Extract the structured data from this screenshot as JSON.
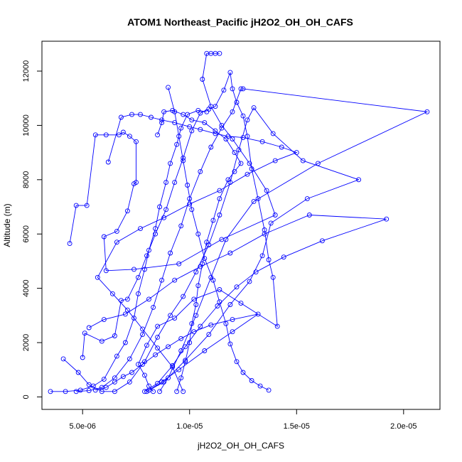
{
  "chart_data": {
    "type": "line",
    "title": "ATOM1 Northeast_Pacific jH2O2_OH_OH_CAFS",
    "xlabel": "jH2O2_OH_OH_CAFS",
    "ylabel": "Altitude (m)",
    "xlim": [
      3.1e-06,
      2.17e-05
    ],
    "ylim": [
      -460,
      13100
    ],
    "xticks": [
      5e-06,
      1e-05,
      1.5e-05,
      2e-05
    ],
    "xtick_labels": [
      "5.0e-06",
      "1.0e-05",
      "1.5e-05",
      "2.0e-05"
    ],
    "yticks": [
      0,
      2000,
      4000,
      6000,
      8000,
      10000,
      12000
    ],
    "ytick_labels": [
      "0",
      "2000",
      "4000",
      "6000",
      "8000",
      "10000",
      "12000"
    ],
    "series_color": "#0000ff",
    "marker": "open-circle",
    "series": [
      {
        "values": [
          [
            3.5e-06,
            200
          ],
          [
            4.2e-06,
            200
          ],
          [
            4.9e-06,
            250
          ],
          [
            5.5e-06,
            400
          ],
          [
            6e-06,
            650
          ],
          [
            6.6e-06,
            1500
          ],
          [
            7e-06,
            2000
          ],
          [
            7.4e-06,
            2900
          ],
          [
            7.6e-06,
            3800
          ],
          [
            7.9e-06,
            4700
          ],
          [
            8.1e-06,
            5400
          ],
          [
            8.4e-06,
            6200
          ],
          [
            8.6e-06,
            7000
          ],
          [
            8.9e-06,
            7900
          ],
          [
            9.1e-06,
            8600
          ],
          [
            9.4e-06,
            9300
          ],
          [
            9.6e-06,
            9900
          ],
          [
            9.9e-06,
            10400
          ],
          [
            1.04e-05,
            10550
          ],
          [
            1.08e-05,
            10500
          ]
        ]
      },
      {
        "values": [
          [
            4.7e-06,
            200
          ],
          [
            5.3e-06,
            230
          ],
          [
            5.9e-06,
            350
          ],
          [
            6.5e-06,
            700
          ],
          [
            7.2e-06,
            1400
          ],
          [
            7.8e-06,
            2300
          ],
          [
            8.3e-06,
            3300
          ],
          [
            8.7e-06,
            4300
          ],
          [
            9.1e-06,
            5300
          ],
          [
            9.6e-06,
            6300
          ],
          [
            1e-05,
            7300
          ],
          [
            1.05e-05,
            8300
          ],
          [
            1.1e-05,
            9200
          ],
          [
            1.15e-05,
            9900
          ],
          [
            1.2e-05,
            10500
          ],
          [
            1.24e-05,
            11350
          ],
          [
            1.25e-05,
            11350
          ],
          [
            2.11e-05,
            10500
          ],
          [
            1.6e-05,
            8600
          ],
          [
            1.3e-05,
            7200
          ],
          [
            1.17e-05,
            5800
          ],
          [
            1.1e-05,
            4400
          ],
          [
            1.03e-05,
            3000
          ],
          [
            9.6e-06,
            1700
          ],
          [
            9e-06,
            700
          ],
          [
            8.6e-06,
            200
          ]
        ]
      },
      {
        "values": [
          [
            4.4e-06,
            5650
          ],
          [
            4.7e-06,
            7050
          ],
          [
            5.2e-06,
            7050
          ],
          [
            5.6e-06,
            9650
          ],
          [
            6.1e-06,
            9650
          ],
          [
            6.7e-06,
            9650
          ],
          [
            6.9e-06,
            9750
          ],
          [
            7.2e-06,
            9600
          ],
          [
            7.5e-06,
            9400
          ],
          [
            7.5e-06,
            7900
          ],
          [
            7.4e-06,
            7850
          ],
          [
            7.1e-06,
            6850
          ],
          [
            6.6e-06,
            6100
          ],
          [
            6e-06,
            5900
          ],
          [
            6.1e-06,
            4650
          ],
          [
            7.4e-06,
            4700
          ],
          [
            9.5e-06,
            4900
          ],
          [
            1.15e-05,
            5800
          ],
          [
            1.4e-05,
            6700
          ],
          [
            1.36e-05,
            7600
          ],
          [
            1.28e-05,
            8600
          ],
          [
            1.2e-05,
            9500
          ],
          [
            1.15e-05,
            10000
          ],
          [
            1.1e-05,
            10700
          ],
          [
            1.06e-05,
            11700
          ],
          [
            1.08e-05,
            12650
          ],
          [
            1.1e-05,
            12650
          ],
          [
            1.12e-05,
            12650
          ],
          [
            1.14e-05,
            12650
          ]
        ]
      },
      {
        "values": [
          [
            6.2e-06,
            8650
          ],
          [
            6.8e-06,
            10300
          ],
          [
            7.3e-06,
            10400
          ],
          [
            7.7e-06,
            10400
          ],
          [
            8.2e-06,
            10300
          ],
          [
            8.7e-06,
            10200
          ],
          [
            9.3e-06,
            10100
          ],
          [
            1e-05,
            9950
          ],
          [
            1.05e-05,
            9850
          ],
          [
            1.12e-05,
            9700
          ],
          [
            1.18e-05,
            9600
          ],
          [
            1.25e-05,
            9550
          ],
          [
            1.34e-05,
            9400
          ],
          [
            1.43e-05,
            9200
          ],
          [
            1.5e-05,
            9000
          ],
          [
            1.4e-05,
            8700
          ],
          [
            1.27e-05,
            8200
          ],
          [
            1.14e-05,
            7600
          ],
          [
            1e-05,
            7100
          ],
          [
            8.8e-06,
            6600
          ],
          [
            7.7e-06,
            6200
          ],
          [
            6.6e-06,
            5700
          ],
          [
            5.7e-06,
            4400
          ],
          [
            6.4e-06,
            3800
          ],
          [
            7.1e-06,
            3200
          ],
          [
            7.8e-06,
            2500
          ],
          [
            8.5e-06,
            1800
          ],
          [
            9.2e-06,
            1100
          ],
          [
            9.7e-06,
            200
          ]
        ]
      },
      {
        "values": [
          [
            4.1e-06,
            1400
          ],
          [
            4.8e-06,
            900
          ],
          [
            5.3e-06,
            450
          ],
          [
            5.9e-06,
            200
          ],
          [
            6.5e-06,
            200
          ],
          [
            7.2e-06,
            550
          ],
          [
            7.9e-06,
            1300
          ],
          [
            8.5e-06,
            2200
          ],
          [
            9.1e-06,
            3000
          ],
          [
            9.7e-06,
            3700
          ],
          [
            1.03e-05,
            4600
          ],
          [
            1.09e-05,
            5600
          ],
          [
            1.14e-05,
            6700
          ],
          [
            1.19e-05,
            7900
          ],
          [
            1.23e-05,
            9100
          ],
          [
            1.27e-05,
            10200
          ],
          [
            1.3e-05,
            10650
          ],
          [
            1.39e-05,
            9700
          ],
          [
            1.53e-05,
            8700
          ],
          [
            1.79e-05,
            8000
          ],
          [
            1.55e-05,
            7300
          ],
          [
            1.38e-05,
            6400
          ],
          [
            1.34e-05,
            5200
          ],
          [
            1.28e-05,
            4250
          ],
          [
            1.19e-05,
            3400
          ],
          [
            1.09e-05,
            2300
          ],
          [
            9.8e-06,
            1350
          ],
          [
            8.8e-06,
            550
          ],
          [
            8e-06,
            200
          ]
        ]
      },
      {
        "values": [
          [
            5e-06,
            1450
          ],
          [
            5.1e-06,
            2350
          ],
          [
            5.9e-06,
            2050
          ],
          [
            6.5e-06,
            2250
          ],
          [
            6.8e-06,
            3550
          ],
          [
            7.1e-06,
            3600
          ],
          [
            7.6e-06,
            4400
          ],
          [
            8e-06,
            5200
          ],
          [
            8.4e-06,
            6000
          ],
          [
            8.9e-06,
            6900
          ],
          [
            9.3e-06,
            7900
          ],
          [
            9.7e-06,
            8800
          ],
          [
            1.01e-05,
            9800
          ],
          [
            1.05e-05,
            10450
          ],
          [
            1.09e-05,
            10600
          ],
          [
            1.12e-05,
            10700
          ],
          [
            1.16e-05,
            11300
          ],
          [
            1.19e-05,
            11950
          ],
          [
            1.2e-05,
            11350
          ],
          [
            1.22e-05,
            10850
          ],
          [
            1.25e-05,
            10350
          ],
          [
            1.27e-05,
            9600
          ],
          [
            1.29e-05,
            8400
          ],
          [
            1.32e-05,
            7300
          ],
          [
            1.35e-05,
            6150
          ],
          [
            1.37e-05,
            5050
          ],
          [
            1.39e-05,
            4400
          ],
          [
            1.41e-05,
            2600
          ],
          [
            1.24e-05,
            3450
          ],
          [
            1.14e-05,
            3950
          ],
          [
            1.02e-05,
            3600
          ],
          [
            9.3e-06,
            2900
          ],
          [
            8.5e-06,
            2600
          ],
          [
            8e-06,
            1900
          ],
          [
            7.6e-06,
            1200
          ],
          [
            7.9e-06,
            800
          ],
          [
            8.1e-06,
            400
          ],
          [
            8.3e-06,
            200
          ]
        ]
      },
      {
        "values": [
          [
            5.3e-06,
            2550
          ],
          [
            6e-06,
            2850
          ],
          [
            7e-06,
            3050
          ],
          [
            8.1e-06,
            3600
          ],
          [
            9.3e-06,
            4300
          ],
          [
            1.05e-05,
            4800
          ],
          [
            1.19e-05,
            5300
          ],
          [
            1.35e-05,
            6000
          ],
          [
            1.56e-05,
            6700
          ],
          [
            1.92e-05,
            6550
          ],
          [
            1.62e-05,
            5750
          ],
          [
            1.44e-05,
            5150
          ],
          [
            1.31e-05,
            4600
          ],
          [
            1.22e-05,
            4050
          ],
          [
            1.13e-05,
            3350
          ],
          [
            1.05e-05,
            2600
          ],
          [
            9.8e-06,
            1850
          ],
          [
            9.2e-06,
            1150
          ],
          [
            8.5e-06,
            500
          ],
          [
            7.9e-06,
            200
          ]
        ]
      },
      {
        "values": [
          [
            5.6e-06,
            250
          ],
          [
            6.1e-06,
            350
          ],
          [
            6.5e-06,
            550
          ],
          [
            6.9e-06,
            750
          ],
          [
            7.3e-06,
            900
          ],
          [
            7.8e-06,
            1200
          ],
          [
            8.4e-06,
            1550
          ],
          [
            9e-06,
            1850
          ],
          [
            9.6e-06,
            2150
          ],
          [
            1.02e-05,
            2400
          ],
          [
            1.1e-05,
            2650
          ],
          [
            1.2e-05,
            2850
          ],
          [
            1.32e-05,
            3050
          ],
          [
            1.2e-05,
            2400
          ],
          [
            1.07e-05,
            1700
          ],
          [
            9.5e-06,
            1000
          ],
          [
            8.7e-06,
            550
          ],
          [
            8.1e-06,
            250
          ]
        ]
      },
      {
        "values": [
          [
            8.5e-06,
            9650
          ],
          [
            8.7e-06,
            10100
          ],
          [
            8.8e-06,
            10500
          ],
          [
            9.2e-06,
            10550
          ],
          [
            9.7e-06,
            10400
          ],
          [
            1.01e-05,
            10200
          ],
          [
            1.07e-05,
            10100
          ],
          [
            1.12e-05,
            9800
          ],
          [
            1.17e-05,
            9500
          ],
          [
            1.21e-05,
            9000
          ],
          [
            1.24e-05,
            8600
          ],
          [
            1.21e-05,
            8300
          ],
          [
            1.18e-05,
            8000
          ],
          [
            1.14e-05,
            7300
          ],
          [
            1.11e-05,
            6500
          ],
          [
            1.08e-05,
            5700
          ],
          [
            1.06e-05,
            4900
          ],
          [
            1.04e-05,
            4100
          ],
          [
            1.03e-05,
            3400
          ],
          [
            1.01e-05,
            2700
          ],
          [
            1e-05,
            2000
          ],
          [
            9.8e-06,
            1300
          ],
          [
            9.6e-06,
            700
          ],
          [
            9.4e-06,
            200
          ]
        ]
      },
      {
        "values": [
          [
            9e-06,
            11400
          ],
          [
            9.3e-06,
            10500
          ],
          [
            9.5e-06,
            9600
          ],
          [
            9.7e-06,
            8700
          ],
          [
            9.9e-06,
            7800
          ],
          [
            1.01e-05,
            6900
          ],
          [
            1.04e-05,
            6000
          ],
          [
            1.07e-05,
            5100
          ],
          [
            1.11e-05,
            4300
          ],
          [
            1.14e-05,
            3500
          ],
          [
            1.17e-05,
            2700
          ],
          [
            1.19e-05,
            1950
          ],
          [
            1.22e-05,
            1300
          ],
          [
            1.25e-05,
            900
          ],
          [
            1.29e-05,
            600
          ],
          [
            1.33e-05,
            400
          ],
          [
            1.37e-05,
            250
          ]
        ]
      }
    ]
  }
}
